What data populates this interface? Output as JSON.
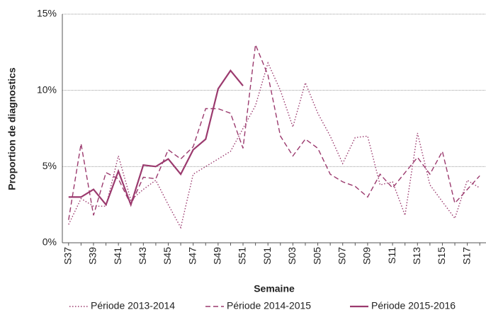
{
  "chart_data": {
    "type": "line",
    "y_label": "Proportion de diagnostics",
    "x_label": "Semaine",
    "categories": [
      "S37",
      null,
      "S39",
      null,
      "S41",
      null,
      "S43",
      null,
      "S45",
      null,
      "S47",
      null,
      "S49",
      null,
      "S51",
      null,
      "S01",
      null,
      "S03",
      null,
      "S05",
      null,
      "S07",
      null,
      "S09",
      null,
      "S11",
      null,
      "S13",
      null,
      "S15",
      null,
      "S17",
      null
    ],
    "series": [
      {
        "name": "Période 2013-2014",
        "color": "#9b3a6e",
        "dash": "dotted",
        "values": [
          1.2,
          2.9,
          2.4,
          2.4,
          5.7,
          2.8,
          3.5,
          4.1,
          2.5,
          1.0,
          4.5,
          5.0,
          5.5,
          6.0,
          7.5,
          9.0,
          11.8,
          10.0,
          7.6,
          10.5,
          8.5,
          7.0,
          5.2,
          6.9,
          7.0,
          3.8,
          4.0,
          1.8,
          7.2,
          3.8,
          2.7,
          1.6,
          4.1,
          3.6
        ]
      },
      {
        "name": "Période 2014-2015",
        "color": "#9b3a6e",
        "dash": "dashed",
        "values": [
          1.5,
          6.5,
          1.8,
          4.6,
          4.2,
          2.5,
          4.3,
          4.2,
          6.1,
          5.5,
          6.3,
          8.8,
          8.8,
          8.5,
          6.2,
          13.0,
          11.0,
          7.0,
          5.7,
          6.8,
          6.2,
          4.5,
          4.0,
          3.7,
          3.0,
          4.5,
          3.6,
          4.6,
          5.6,
          4.5,
          6.0,
          2.6,
          3.5,
          4.4
        ]
      },
      {
        "name": "Période 2015-2016",
        "color": "#9b3a6e",
        "dash": "solid",
        "values": [
          3.0,
          3.0,
          3.5,
          2.5,
          4.7,
          2.5,
          5.1,
          5.0,
          5.5,
          4.5,
          6.1,
          6.8,
          10.1,
          11.3,
          10.3,
          null,
          null,
          null,
          null,
          null,
          null,
          null,
          null,
          null,
          null,
          null,
          null,
          null,
          null,
          null,
          null,
          null,
          null,
          null
        ]
      }
    ],
    "ylim": [
      0,
      15
    ],
    "yticks": [
      {
        "value": 0,
        "label": "0%"
      },
      {
        "value": 5,
        "label": "5%"
      },
      {
        "value": 10,
        "label": "10%"
      },
      {
        "value": 15,
        "label": "15%"
      }
    ],
    "grid": true,
    "legend": "bottom"
  }
}
